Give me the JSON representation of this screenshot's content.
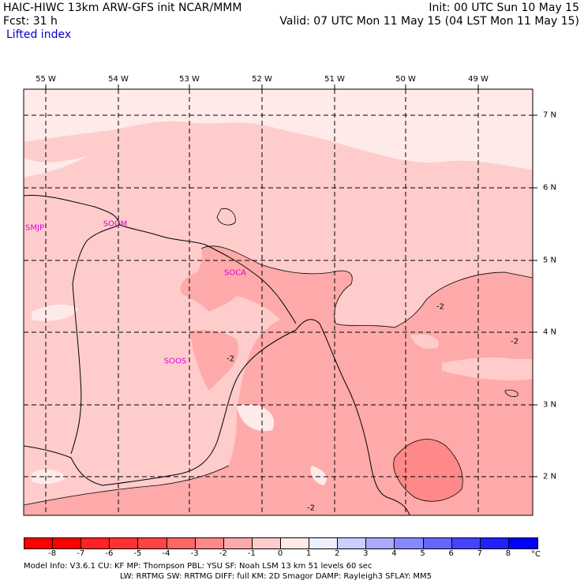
{
  "header": {
    "line1": "HAIC-HIWC 13km ARW-GFS init   NCAR/MMM",
    "line2": "Fcst:   31 h",
    "field": "Lifted index",
    "init": "Init: 00 UTC Sun 10 May 15",
    "valid": "Valid: 07 UTC Mon 11 May 15 (04 LST Mon 11 May 15)"
  },
  "map": {
    "longitudes": [
      "55 W",
      "54 W",
      "53 W",
      "52 W",
      "51 W",
      "50 W",
      "49 W"
    ],
    "latitudes": [
      "7 N",
      "6 N",
      "5 N",
      "4 N",
      "3 N",
      "2 N"
    ],
    "stations": [
      "SMJP",
      "SOGM",
      "SOCA",
      "SOOS"
    ],
    "contour_labels": [
      "-2",
      "-2",
      "-2",
      "-2"
    ],
    "colors": {
      "minus1_to_0": "#ffeaea",
      "minus2_to_minus1": "#ffcccc",
      "minus3_to_minus2": "#ffaaaa",
      "minus4_to_minus3": "#ff8888",
      "land_outline": "#000000",
      "grid": "#000000"
    }
  },
  "colorbar": {
    "ticks": [
      "-8",
      "-7",
      "-6",
      "-5",
      "-4",
      "-3",
      "-2",
      "-1",
      "0",
      "1",
      "2",
      "3",
      "4",
      "5",
      "6",
      "7",
      "8"
    ],
    "unit": "°C",
    "colors": [
      "#ff0000",
      "#ff2222",
      "#ff3333",
      "#ff4444",
      "#ff6666",
      "#ff8888",
      "#ffaaaa",
      "#ffcccc",
      "#ffeaea",
      "#eeeeff",
      "#ccccff",
      "#aaaaff",
      "#8888ff",
      "#6666ff",
      "#4444ff",
      "#2222ff",
      "#0000ff"
    ]
  },
  "model_info": {
    "line1": "Model Info: V3.6.1     CU: KF        MP: Thompson     PBL: YSU        SF: Noah LSM      13 km    51 levels   60 sec",
    "line2": "LW: RRTMG     SW: RRTMG   DIFF: full     KM: 2D Smagor  DAMP: Rayleigh3   SFLAY: MM5"
  }
}
